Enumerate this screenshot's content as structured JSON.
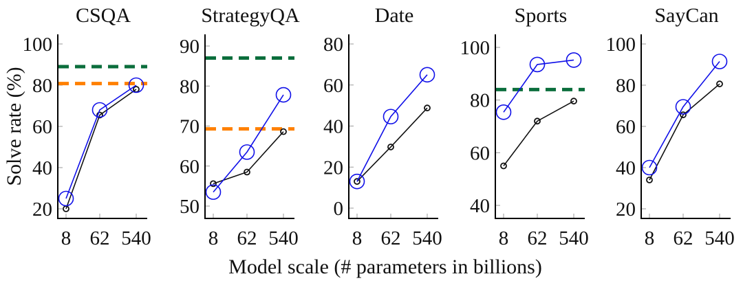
{
  "chart_data": {
    "type": "line",
    "xlabel": "Model scale (# parameters in billions)",
    "ylabel": "Solve rate (%)",
    "x": [
      8,
      62,
      540
    ],
    "x_tick_labels": [
      "8",
      "62",
      "540"
    ],
    "x_scale": "log",
    "colors": {
      "blue_series": "#1010e8",
      "black_series": "#111111",
      "green_reference": "#0b6e3c",
      "orange_reference": "#ff8000"
    },
    "panels": [
      {
        "title": "CSQA",
        "ylim": [
          16,
          104
        ],
        "yticks": [
          20,
          40,
          60,
          80,
          100
        ],
        "series": [
          {
            "name": "blue-circle-series",
            "color": "blue",
            "marker": "large-circle",
            "values": [
              25,
              68,
              80
            ]
          },
          {
            "name": "black-circle-series",
            "color": "black",
            "marker": "small-circle",
            "values": [
              20,
              65.5,
              78
            ]
          }
        ],
        "reference_lines": [
          {
            "name": "green-dashed",
            "color": "green",
            "value": 89
          },
          {
            "name": "orange-dashed",
            "color": "orange",
            "value": 80.8
          }
        ]
      },
      {
        "title": "StrategyQA",
        "ylim": [
          47,
          93
        ],
        "yticks": [
          50,
          60,
          70,
          80,
          90
        ],
        "series": [
          {
            "name": "blue-circle-series",
            "color": "blue",
            "marker": "large-circle",
            "values": [
              53.5,
              63.5,
              77.8
            ]
          },
          {
            "name": "black-circle-series",
            "color": "black",
            "marker": "small-circle",
            "values": [
              55.6,
              58.5,
              68.6
            ]
          }
        ],
        "reference_lines": [
          {
            "name": "green-dashed",
            "color": "green",
            "value": 87
          },
          {
            "name": "orange-dashed",
            "color": "orange",
            "value": 69.3
          }
        ]
      },
      {
        "title": "Date",
        "ylim": [
          -5,
          85
        ],
        "yticks": [
          0,
          20,
          40,
          60,
          80
        ],
        "series": [
          {
            "name": "blue-circle-series",
            "color": "blue",
            "marker": "large-circle",
            "values": [
              13,
              44.6,
              65
            ]
          },
          {
            "name": "black-circle-series",
            "color": "black",
            "marker": "small-circle",
            "values": [
              13,
              29.8,
              48.8
            ]
          }
        ],
        "reference_lines": []
      },
      {
        "title": "Sports",
        "ylim": [
          35,
          104
        ],
        "yticks": [
          40,
          60,
          80,
          100
        ],
        "series": [
          {
            "name": "blue-circle-series",
            "color": "blue",
            "marker": "large-circle",
            "values": [
              75.4,
              93.5,
              95.2
            ]
          },
          {
            "name": "black-circle-series",
            "color": "black",
            "marker": "small-circle",
            "values": [
              55,
              72,
              79.6
            ]
          }
        ],
        "reference_lines": [
          {
            "name": "green-dashed",
            "color": "green",
            "value": 84
          }
        ]
      },
      {
        "title": "SayCan",
        "ylim": [
          16,
          104
        ],
        "yticks": [
          20,
          40,
          60,
          80,
          100
        ],
        "series": [
          {
            "name": "blue-circle-series",
            "color": "blue",
            "marker": "large-circle",
            "values": [
              40,
              69.5,
              91.5
            ]
          },
          {
            "name": "black-circle-series",
            "color": "black",
            "marker": "small-circle",
            "values": [
              34,
              65.6,
              80.6
            ]
          }
        ],
        "reference_lines": []
      }
    ]
  }
}
